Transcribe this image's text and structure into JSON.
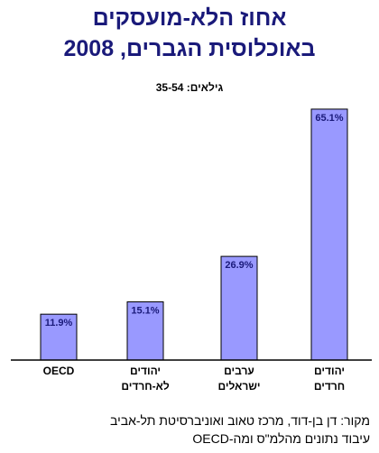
{
  "header": {
    "title_line1": "אחוז הלא-מועסקים",
    "title_line2": "באוכלוסית הגברים, 2008",
    "age_label": "גילאים:  35-54"
  },
  "chart_data": {
    "type": "bar",
    "categories": [
      {
        "line1": "OECD",
        "line2": ""
      },
      {
        "line1": "יהודים",
        "line2": "לא-חרדים"
      },
      {
        "line1": "ערבים",
        "line2": "ישראלים"
      },
      {
        "line1": "יהודים",
        "line2": "חרדים"
      }
    ],
    "values": [
      11.9,
      15.1,
      26.9,
      65.1
    ],
    "value_labels": [
      "11.9%",
      "15.1%",
      "26.9%",
      "65.1%"
    ],
    "ylim": [
      0,
      70
    ],
    "bar_color": "#9999ff",
    "bar_border": "#000000",
    "label_color": "#1a1a7a",
    "grid": false,
    "legend": false
  },
  "footer": {
    "source_line1": "מקור:  דן בן-דוד, מרכז טאוב ואוניברסיטת תל-אביב",
    "source_line2": "עיבוד נתונים מהלמ\"ס ומה-OECD"
  }
}
